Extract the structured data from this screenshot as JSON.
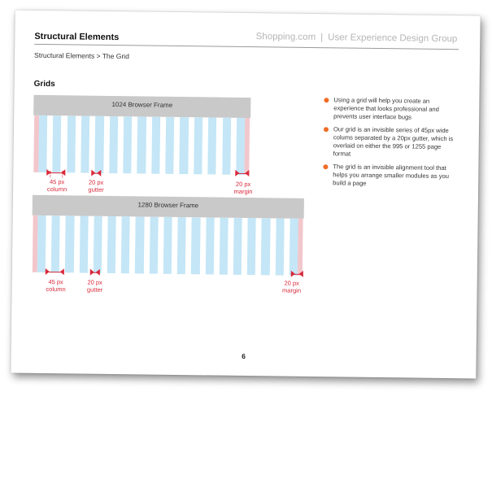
{
  "header": {
    "title": "Structural Elements",
    "site": "Shopping.com",
    "separator": "|",
    "group": "User Experience Design Group"
  },
  "breadcrumb": "Structural Elements > The Grid",
  "section_title": "Grids",
  "frames": [
    {
      "title": "1024 Browser Frame",
      "columns": 15,
      "column_label": [
        "45 px",
        "column"
      ],
      "gutter_label": [
        "20 px",
        "gutter"
      ],
      "margin_label": [
        "20 px",
        "margin"
      ]
    },
    {
      "title": "1280 Browser Frame",
      "columns": 19,
      "column_label": [
        "45 px",
        "column"
      ],
      "gutter_label": [
        "20 px",
        "gutter"
      ],
      "margin_label": [
        "20 px",
        "margin"
      ]
    }
  ],
  "bullets": [
    "Using a grid will help you create an experience that looks professional and prevents user interface bugs",
    "Our grid is an invisible series of 45px wide colums separated by a 20px gutter, which is overlaid on either the 995 or 1255 page format",
    "The grid is an invisible alignment tool that helps you arrange smaller modules as you build a page"
  ],
  "page_number": "6",
  "colors": {
    "column": "#c4e6f6",
    "margin": "#f2c7cc",
    "annotation": "#d8283a",
    "bullet": "#f06c25",
    "frame_bar": "#c9c9c9"
  }
}
